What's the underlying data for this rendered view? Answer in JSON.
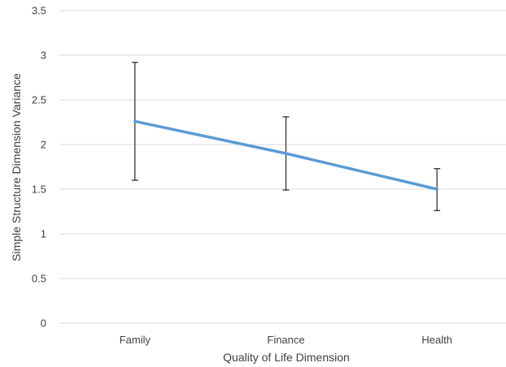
{
  "chart_data": {
    "type": "line",
    "categories": [
      "Family",
      "Finance",
      "Health"
    ],
    "series": [
      {
        "values": [
          2.26,
          1.9,
          1.5
        ],
        "error_upper": [
          2.92,
          2.31,
          1.73
        ],
        "error_lower": [
          1.6,
          1.49,
          1.26
        ],
        "color": "#5b9bd5"
      }
    ],
    "xlabel": "Quality of Life Dimension",
    "ylabel": "Simple Structure Dimension Variance",
    "ylim": [
      0,
      3.5
    ],
    "yticks": [
      "0",
      "0.5",
      "1",
      "1.5",
      "2",
      "2.5",
      "3",
      "3.5"
    ],
    "grid": true,
    "legend": "none",
    "gridline_color": "#d9d9d9",
    "errorbar_color": "#262626"
  }
}
